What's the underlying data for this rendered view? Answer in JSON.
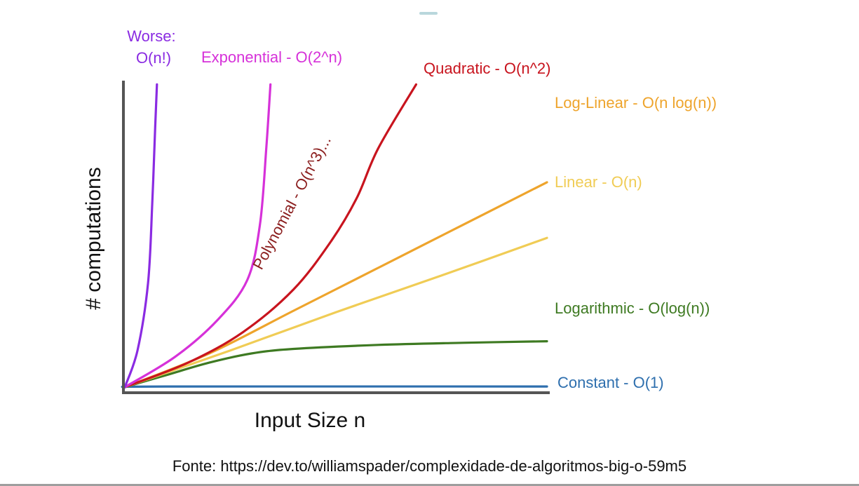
{
  "chart_data": {
    "type": "line",
    "xlabel": "Input Size n",
    "ylabel": "# computations",
    "source": "Fonte: https://dev.to/williamspader/complexidade-de-algoritmos-big-o-59m5",
    "grid": false,
    "series": [
      {
        "name": "Constant - O(1)",
        "key": "constant",
        "color": "#2e6fae",
        "points": [
          [
            0,
            0
          ],
          [
            1,
            0.02
          ],
          [
            10,
            0.02
          ]
        ]
      },
      {
        "name": "Logarithmic - O(log(n))",
        "key": "logarithmic",
        "color": "#3e7a22",
        "points": [
          [
            0,
            0
          ],
          [
            1,
            0.4
          ],
          [
            2,
            0.8
          ],
          [
            3,
            1.1
          ],
          [
            4,
            1.25
          ],
          [
            6,
            1.38
          ],
          [
            8,
            1.45
          ],
          [
            10,
            1.5
          ]
        ]
      },
      {
        "name": "Linear - O(n)",
        "key": "linear",
        "color": "#f0cc55",
        "points": [
          [
            0,
            0
          ],
          [
            2.5,
            1.2
          ],
          [
            5,
            2.45
          ],
          [
            7.5,
            3.65
          ],
          [
            10,
            4.88
          ]
        ]
      },
      {
        "name": "Log-Linear - O(n log(n))",
        "key": "loglinear",
        "color": "#eea42c",
        "points": [
          [
            0,
            0
          ],
          [
            2,
            1.1
          ],
          [
            4,
            2.5
          ],
          [
            6,
            3.9
          ],
          [
            8,
            5.3
          ],
          [
            10,
            6.7
          ]
        ]
      },
      {
        "name": "Quadratic - O(n^2)",
        "key": "quadratic",
        "color": "#c8141e",
        "points": [
          [
            0,
            0
          ],
          [
            1.5,
            0.8
          ],
          [
            2.8,
            1.8
          ],
          [
            4,
            3.2
          ],
          [
            4.9,
            4.8
          ],
          [
            5.5,
            6.2
          ],
          [
            6,
            7.8
          ],
          [
            6.9,
            9.9
          ]
        ]
      },
      {
        "name": "Exponential - O(2^n)",
        "key": "exponential",
        "color": "#d631d9",
        "points": [
          [
            0,
            0
          ],
          [
            1.2,
            1.0
          ],
          [
            2.2,
            2.2
          ],
          [
            2.9,
            3.5
          ],
          [
            3.2,
            5.3
          ],
          [
            3.35,
            7.8
          ],
          [
            3.45,
            9.9
          ]
        ]
      },
      {
        "name": "Worse: O(n!)",
        "key": "factorial",
        "color": "#8a2be2",
        "points": [
          [
            0,
            0
          ],
          [
            0.3,
            1.2
          ],
          [
            0.55,
            3.4
          ],
          [
            0.65,
            6.0
          ],
          [
            0.72,
            8.5
          ],
          [
            0.76,
            9.9
          ]
        ]
      }
    ],
    "annotations": [
      {
        "text": "Polynomial - O(n^3)...",
        "color": "#8b1e1e"
      }
    ],
    "xlim": [
      0,
      10
    ],
    "ylim": [
      0,
      10
    ],
    "colors": {
      "axis": "#555555",
      "text": "#111111"
    }
  }
}
